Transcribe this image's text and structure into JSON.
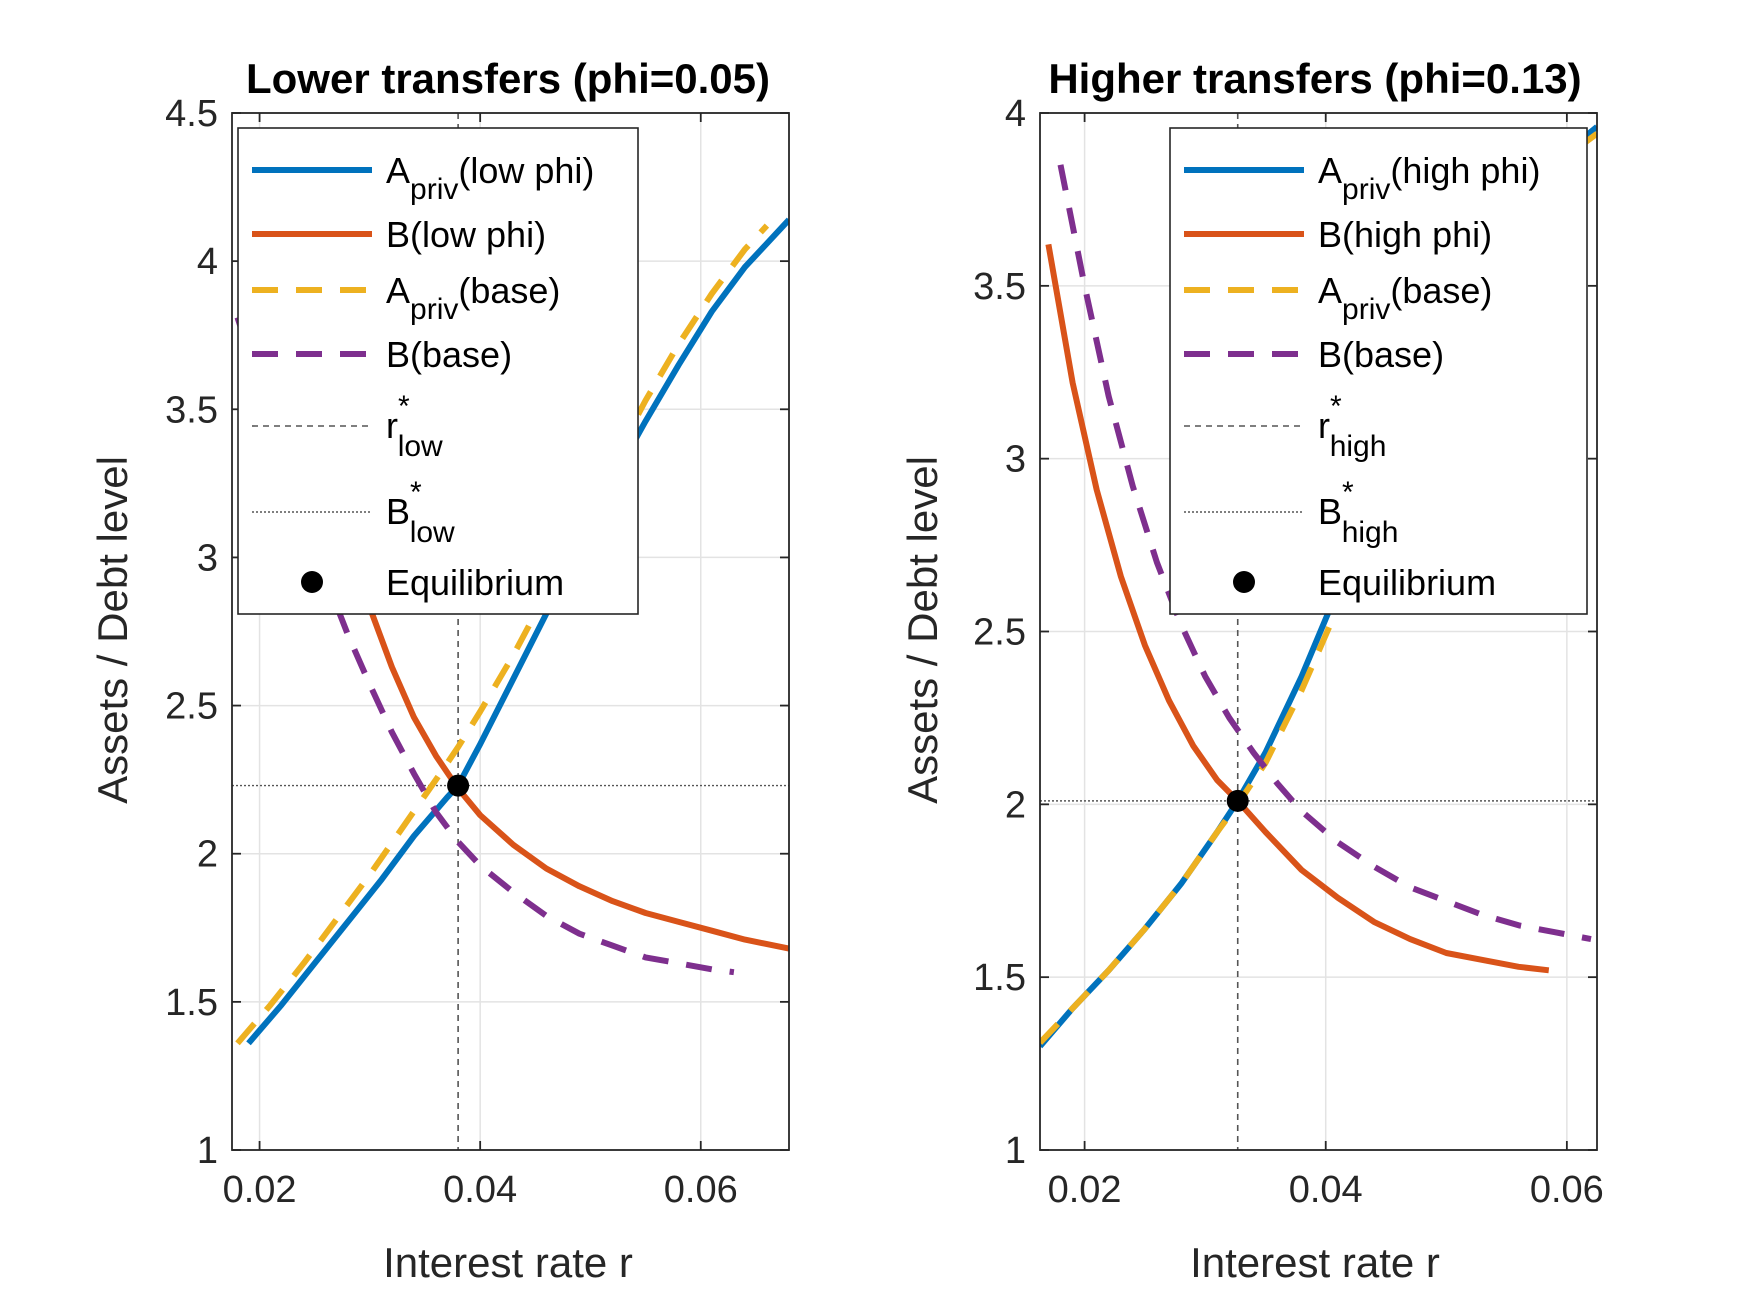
{
  "chart_data": [
    {
      "type": "line",
      "title": "Lower transfers (phi=0.05)",
      "xlabel": "Interest rate r",
      "ylabel": "Assets / Debt level",
      "xlim": [
        0.0175,
        0.068
      ],
      "ylim": [
        1,
        4.5
      ],
      "xticks": [
        0.02,
        0.04,
        0.06
      ],
      "xtick_labels": [
        "0.02",
        "0.04",
        "0.06"
      ],
      "yticks": [
        1,
        1.5,
        2,
        2.5,
        3,
        3.5,
        4,
        4.5
      ],
      "ytick_labels": [
        "1",
        "1.5",
        "2",
        "2.5",
        "3",
        "3.5",
        "4",
        "4.5"
      ],
      "grid": true,
      "legend_location": "top-right",
      "series": [
        {
          "name": "Apriv(low phi)",
          "label_main": "A",
          "label_sub": "priv",
          "label_rest": "(low phi)",
          "color": "#0072BD",
          "style": "solid",
          "x": [
            0.019,
            0.022,
            0.025,
            0.028,
            0.031,
            0.034,
            0.037,
            0.038,
            0.04,
            0.043,
            0.046,
            0.049,
            0.052,
            0.055,
            0.058,
            0.061,
            0.064,
            0.068
          ],
          "y": [
            1.36,
            1.49,
            1.63,
            1.77,
            1.91,
            2.06,
            2.19,
            2.23,
            2.37,
            2.59,
            2.81,
            3.04,
            3.26,
            3.46,
            3.65,
            3.83,
            3.98,
            4.14
          ]
        },
        {
          "name": "B(low phi)",
          "label_main": "B",
          "label_sub": "",
          "label_rest": "(low phi)",
          "color": "#D95319",
          "style": "solid",
          "x": [
            0.026,
            0.028,
            0.03,
            0.032,
            0.034,
            0.036,
            0.038,
            0.04,
            0.043,
            0.046,
            0.049,
            0.052,
            0.055,
            0.058,
            0.061,
            0.064,
            0.068
          ],
          "y": [
            3.35,
            3.07,
            2.83,
            2.63,
            2.46,
            2.33,
            2.22,
            2.13,
            2.03,
            1.95,
            1.89,
            1.84,
            1.8,
            1.77,
            1.74,
            1.71,
            1.68
          ]
        },
        {
          "name": "Apriv(base)",
          "label_main": "A",
          "label_sub": "priv",
          "label_rest": "(base)",
          "color": "#EDB120",
          "style": "dashed",
          "x": [
            0.018,
            0.021,
            0.024,
            0.027,
            0.03,
            0.033,
            0.036,
            0.038,
            0.04,
            0.043,
            0.046,
            0.049,
            0.052,
            0.055,
            0.058,
            0.061,
            0.064,
            0.066
          ],
          "y": [
            1.36,
            1.49,
            1.63,
            1.78,
            1.93,
            2.09,
            2.25,
            2.36,
            2.48,
            2.67,
            2.88,
            3.1,
            3.32,
            3.53,
            3.72,
            3.89,
            4.04,
            4.12
          ]
        },
        {
          "name": "B(base)",
          "label_main": "B",
          "label_sub": "",
          "label_rest": "(base)",
          "color": "#7E2F8E",
          "style": "dashed",
          "x": [
            0.018,
            0.02,
            0.022,
            0.024,
            0.026,
            0.028,
            0.03,
            0.032,
            0.034,
            0.036,
            0.038,
            0.04,
            0.043,
            0.046,
            0.049,
            0.052,
            0.055,
            0.058,
            0.061,
            0.063
          ],
          "y": [
            3.81,
            3.58,
            3.35,
            3.13,
            2.93,
            2.74,
            2.57,
            2.41,
            2.27,
            2.14,
            2.04,
            1.96,
            1.87,
            1.79,
            1.73,
            1.69,
            1.65,
            1.63,
            1.61,
            1.6
          ]
        }
      ],
      "r_star": 0.038,
      "b_star": 2.23,
      "legend": {
        "r_main": "r",
        "r_sup": "*",
        "r_sub": "low",
        "b_main": "B",
        "b_sup": "*",
        "b_sub": "low",
        "eq": "Equilibrium"
      }
    },
    {
      "type": "line",
      "title": "Higher transfers (phi=0.13)",
      "xlabel": "Interest rate r",
      "ylabel": "Assets / Debt level",
      "xlim": [
        0.0163,
        0.0625
      ],
      "ylim": [
        1,
        4
      ],
      "xticks": [
        0.02,
        0.04,
        0.06
      ],
      "xtick_labels": [
        "0.02",
        "0.04",
        "0.06"
      ],
      "yticks": [
        1,
        1.5,
        2,
        2.5,
        3,
        3.5,
        4
      ],
      "ytick_labels": [
        "1",
        "1.5",
        "2",
        "2.5",
        "3",
        "3.5",
        "4"
      ],
      "grid": true,
      "legend_location": "top-right",
      "series": [
        {
          "name": "Apriv(high phi)",
          "label_main": "A",
          "label_sub": "priv",
          "label_rest": "(high phi)",
          "color": "#0072BD",
          "style": "solid",
          "x": [
            0.0163,
            0.019,
            0.022,
            0.025,
            0.028,
            0.031,
            0.0327,
            0.035,
            0.038,
            0.041,
            0.044,
            0.047,
            0.05,
            0.053,
            0.056,
            0.059,
            0.0625
          ],
          "y": [
            1.3,
            1.41,
            1.52,
            1.64,
            1.77,
            1.92,
            2.01,
            2.15,
            2.37,
            2.62,
            2.87,
            3.11,
            3.33,
            3.53,
            3.71,
            3.86,
            3.96
          ]
        },
        {
          "name": "B(high phi)",
          "label_main": "B",
          "label_sub": "",
          "label_rest": "(high phi)",
          "color": "#D95319",
          "style": "solid",
          "x": [
            0.017,
            0.019,
            0.021,
            0.023,
            0.025,
            0.027,
            0.029,
            0.031,
            0.0327,
            0.035,
            0.038,
            0.041,
            0.044,
            0.047,
            0.05,
            0.053,
            0.056,
            0.0585
          ],
          "y": [
            3.62,
            3.22,
            2.91,
            2.66,
            2.46,
            2.3,
            2.17,
            2.07,
            2.01,
            1.92,
            1.81,
            1.73,
            1.66,
            1.61,
            1.57,
            1.55,
            1.53,
            1.52
          ]
        },
        {
          "name": "Apriv(base)",
          "label_main": "A",
          "label_sub": "priv",
          "label_rest": "(base)",
          "color": "#EDB120",
          "style": "dashed",
          "x": [
            0.0163,
            0.019,
            0.022,
            0.025,
            0.028,
            0.031,
            0.0327,
            0.035,
            0.038,
            0.041,
            0.044,
            0.047,
            0.05,
            0.053,
            0.056,
            0.059,
            0.0625
          ],
          "y": [
            1.31,
            1.41,
            1.52,
            1.64,
            1.77,
            1.92,
            2.0,
            2.12,
            2.33,
            2.57,
            2.82,
            3.07,
            3.3,
            3.51,
            3.7,
            3.85,
            3.94
          ]
        },
        {
          "name": "B(base)",
          "label_main": "B",
          "label_sub": "",
          "label_rest": "(base)",
          "color": "#7E2F8E",
          "style": "dashed",
          "x": [
            0.018,
            0.02,
            0.022,
            0.024,
            0.026,
            0.028,
            0.03,
            0.032,
            0.034,
            0.036,
            0.038,
            0.041,
            0.044,
            0.047,
            0.05,
            0.053,
            0.056,
            0.059,
            0.062
          ],
          "y": [
            3.85,
            3.5,
            3.18,
            2.92,
            2.7,
            2.52,
            2.37,
            2.25,
            2.15,
            2.06,
            1.98,
            1.89,
            1.82,
            1.76,
            1.72,
            1.68,
            1.65,
            1.63,
            1.61
          ]
        }
      ],
      "r_star": 0.0327,
      "b_star": 2.01,
      "legend": {
        "r_main": "r",
        "r_sup": "*",
        "r_sub": "high",
        "b_main": "B",
        "b_sup": "*",
        "b_sub": "high",
        "eq": "Equilibrium"
      }
    }
  ]
}
